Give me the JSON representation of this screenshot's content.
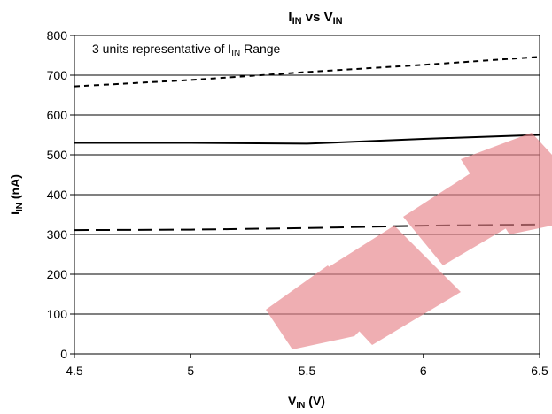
{
  "chart_data": {
    "type": "line",
    "title": {
      "main": "I",
      "sub1": "IN",
      "mid": " vs V",
      "sub2": "IN"
    },
    "xlabel": {
      "main": "V",
      "sub": "IN",
      "rest": " (V)"
    },
    "ylabel": {
      "main": "I",
      "sub": "IN",
      "rest": " (nA)"
    },
    "annotation": {
      "text": "3 units representative of I",
      "sub": "IN",
      "rest": " Range"
    },
    "xlim": [
      4.5,
      6.5
    ],
    "ylim": [
      0,
      800
    ],
    "x_ticks": [
      "4.5",
      "5",
      "5.5",
      "6",
      "6.5"
    ],
    "y_ticks": [
      "0",
      "100",
      "200",
      "300",
      "400",
      "500",
      "600",
      "700",
      "800"
    ],
    "grid": "horizontal",
    "series": [
      {
        "style": "short-dash",
        "x": [
          4.5,
          5.0,
          5.5,
          6.0,
          6.5
        ],
        "values": [
          672,
          688,
          708,
          726,
          746
        ]
      },
      {
        "style": "solid",
        "x": [
          4.5,
          5.0,
          5.5,
          6.0,
          6.5
        ],
        "values": [
          530,
          530,
          528,
          540,
          550
        ]
      },
      {
        "style": "long-dash",
        "x": [
          4.5,
          5.0,
          5.5,
          6.0,
          6.5
        ],
        "values": [
          311,
          312,
          316,
          322,
          325
        ]
      }
    ],
    "watermark": {
      "color": "#e8848a"
    }
  }
}
